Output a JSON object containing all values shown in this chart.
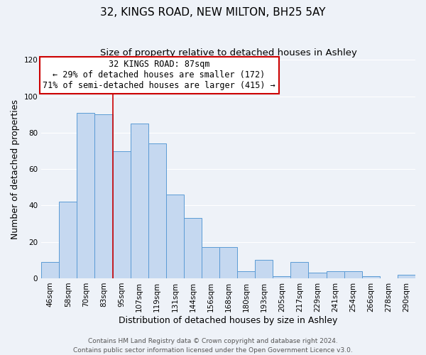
{
  "title": "32, KINGS ROAD, NEW MILTON, BH25 5AY",
  "subtitle": "Size of property relative to detached houses in Ashley",
  "xlabel": "Distribution of detached houses by size in Ashley",
  "ylabel": "Number of detached properties",
  "categories": [
    "46sqm",
    "58sqm",
    "70sqm",
    "83sqm",
    "95sqm",
    "107sqm",
    "119sqm",
    "131sqm",
    "144sqm",
    "156sqm",
    "168sqm",
    "180sqm",
    "193sqm",
    "205sqm",
    "217sqm",
    "229sqm",
    "241sqm",
    "254sqm",
    "266sqm",
    "278sqm",
    "290sqm"
  ],
  "values": [
    9,
    42,
    91,
    90,
    70,
    85,
    74,
    46,
    33,
    17,
    17,
    4,
    10,
    1,
    9,
    3,
    4,
    4,
    1,
    0,
    2
  ],
  "bar_color": "#c5d8f0",
  "bar_edge_color": "#5b9bd5",
  "red_line_index": 3,
  "annotation_title": "32 KINGS ROAD: 87sqm",
  "annotation_line1": "← 29% of detached houses are smaller (172)",
  "annotation_line2": "71% of semi-detached houses are larger (415) →",
  "annotation_box_color": "#ffffff",
  "annotation_box_edge_color": "#cc0000",
  "ylim": [
    0,
    120
  ],
  "yticks": [
    0,
    20,
    40,
    60,
    80,
    100,
    120
  ],
  "footer1": "Contains HM Land Registry data © Crown copyright and database right 2024.",
  "footer2": "Contains public sector information licensed under the Open Government Licence v3.0.",
  "background_color": "#eef2f8",
  "grid_color": "#ffffff",
  "title_fontsize": 11,
  "subtitle_fontsize": 9.5,
  "axis_label_fontsize": 9,
  "tick_fontsize": 7.5,
  "annotation_fontsize": 8.5,
  "footer_fontsize": 6.5
}
